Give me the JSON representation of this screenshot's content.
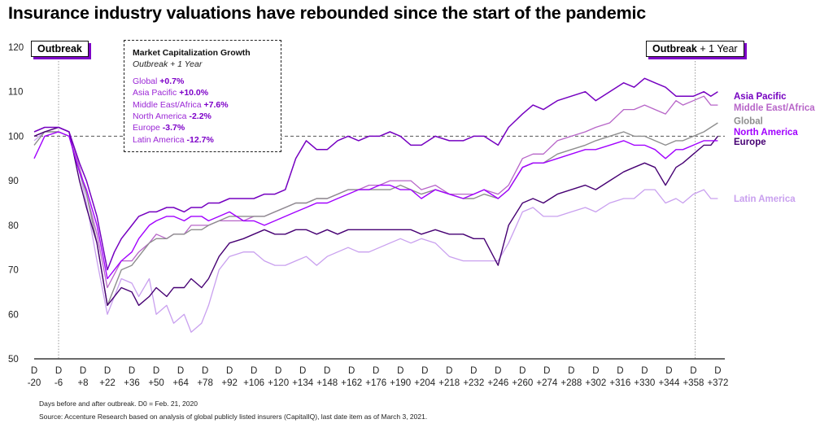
{
  "title": "Insurance industry valuations have rebounded since the start of the pandemic",
  "annotations": {
    "outbreak": "Outbreak",
    "outbreak_plus_bold": "Outbreak",
    "outbreak_plus_rest": " + 1 Year"
  },
  "legend_box": {
    "title": "Market Capitalization Growth",
    "subtitle": "Outbreak + 1 Year",
    "rows": [
      {
        "name": "Global",
        "value": "+0.7%"
      },
      {
        "name": "Asia Pacific",
        "value": "+10.0%"
      },
      {
        "name": "Middle East/Africa",
        "value": "+7.6%"
      },
      {
        "name": "North America",
        "value": "-2.2%"
      },
      {
        "name": "Europe",
        "value": "-3.7%"
      },
      {
        "name": "Latin America",
        "value": "-12.7%"
      }
    ]
  },
  "footnotes": {
    "days": "Days before and after outbreak. D0 = Feb. 21, 2020",
    "source": "Source: Accenture Research based on analysis of global publicly listed insurers (CapitalIQ), last date item as of March 3, 2021."
  },
  "chart_data": {
    "type": "line",
    "xlabel": "",
    "ylabel": "",
    "ylim": [
      50,
      120
    ],
    "xlim": [
      -20,
      376
    ],
    "grid": false,
    "reference_line": 100,
    "event_lines": [
      -6,
      359
    ],
    "y_ticks": [
      50,
      60,
      70,
      80,
      90,
      100,
      110,
      120
    ],
    "x_ticks": [
      {
        "x": -20,
        "top": "D",
        "bottom": "-20"
      },
      {
        "x": -6,
        "top": "D",
        "bottom": "-6"
      },
      {
        "x": 8,
        "top": "D",
        "bottom": "+8"
      },
      {
        "x": 22,
        "top": "D",
        "bottom": "+22"
      },
      {
        "x": 36,
        "top": "D",
        "bottom": "+36"
      },
      {
        "x": 50,
        "top": "D",
        "bottom": "+50"
      },
      {
        "x": 64,
        "top": "D",
        "bottom": "+64"
      },
      {
        "x": 78,
        "top": "D",
        "bottom": "+78"
      },
      {
        "x": 92,
        "top": "D",
        "bottom": "+92"
      },
      {
        "x": 106,
        "top": "D",
        "bottom": "+106"
      },
      {
        "x": 120,
        "top": "D",
        "bottom": "+120"
      },
      {
        "x": 134,
        "top": "D",
        "bottom": "+134"
      },
      {
        "x": 148,
        "top": "D",
        "bottom": "+148"
      },
      {
        "x": 162,
        "top": "D",
        "bottom": "+162"
      },
      {
        "x": 176,
        "top": "D",
        "bottom": "+176"
      },
      {
        "x": 190,
        "top": "D",
        "bottom": "+190"
      },
      {
        "x": 204,
        "top": "D",
        "bottom": "+204"
      },
      {
        "x": 218,
        "top": "D",
        "bottom": "+218"
      },
      {
        "x": 232,
        "top": "D",
        "bottom": "+232"
      },
      {
        "x": 246,
        "top": "D",
        "bottom": "+246"
      },
      {
        "x": 260,
        "top": "D",
        "bottom": "+260"
      },
      {
        "x": 274,
        "top": "D",
        "bottom": "+274"
      },
      {
        "x": 288,
        "top": "D",
        "bottom": "+288"
      },
      {
        "x": 302,
        "top": "D",
        "bottom": "+302"
      },
      {
        "x": 316,
        "top": "D",
        "bottom": "+316"
      },
      {
        "x": 330,
        "top": "D",
        "bottom": "+330"
      },
      {
        "x": 344,
        "top": "D",
        "bottom": "+344"
      },
      {
        "x": 358,
        "top": "D",
        "bottom": "+358"
      },
      {
        "x": 372,
        "top": "D",
        "bottom": "+372"
      }
    ],
    "series": [
      {
        "name": "Latin America",
        "color": "#c9a0ef",
        "width": 1.3,
        "x": [
          -20,
          -14,
          -6,
          0,
          6,
          10,
          16,
          22,
          26,
          30,
          36,
          40,
          46,
          50,
          56,
          60,
          66,
          70,
          76,
          80,
          86,
          92,
          100,
          106,
          112,
          118,
          124,
          130,
          136,
          142,
          148,
          154,
          160,
          166,
          172,
          178,
          184,
          190,
          196,
          202,
          210,
          218,
          226,
          232,
          238,
          246,
          252,
          260,
          266,
          272,
          280,
          288,
          296,
          302,
          310,
          318,
          324,
          330,
          336,
          342,
          348,
          352,
          358,
          364,
          368,
          372
        ],
        "values": [
          99,
          101,
          101,
          100,
          92,
          85,
          72,
          60,
          64,
          68,
          67,
          64,
          68,
          60,
          62,
          58,
          60,
          56,
          58,
          62,
          70,
          73,
          74,
          74,
          72,
          71,
          71,
          72,
          73,
          71,
          73,
          74,
          75,
          74,
          74,
          75,
          76,
          77,
          76,
          77,
          76,
          73,
          72,
          72,
          72,
          72,
          76,
          83,
          84,
          82,
          82,
          83,
          84,
          83,
          85,
          86,
          86,
          88,
          88,
          85,
          86,
          85,
          87,
          88,
          86,
          86
        ]
      },
      {
        "name": "Middle East/Africa",
        "color": "#b765c8",
        "width": 1.3,
        "x": [
          -20,
          -14,
          -6,
          0,
          6,
          10,
          16,
          22,
          26,
          30,
          36,
          40,
          46,
          50,
          56,
          60,
          66,
          70,
          76,
          80,
          86,
          92,
          100,
          106,
          112,
          118,
          124,
          130,
          136,
          142,
          148,
          154,
          160,
          166,
          172,
          178,
          184,
          190,
          196,
          202,
          210,
          218,
          226,
          232,
          238,
          246,
          252,
          260,
          266,
          272,
          280,
          288,
          296,
          302,
          310,
          318,
          324,
          330,
          336,
          342,
          348,
          352,
          358,
          364,
          368,
          372
        ],
        "values": [
          100,
          101,
          102,
          101,
          93,
          87,
          78,
          66,
          69,
          72,
          72,
          74,
          76,
          78,
          77,
          78,
          78,
          80,
          80,
          80,
          81,
          81,
          81,
          82,
          82,
          83,
          84,
          85,
          85,
          86,
          86,
          87,
          88,
          88,
          89,
          89,
          90,
          90,
          90,
          88,
          89,
          87,
          87,
          87,
          88,
          87,
          89,
          95,
          96,
          96,
          99,
          100,
          101,
          102,
          103,
          106,
          106,
          107,
          106,
          105,
          108,
          107,
          108,
          109,
          107,
          107
        ]
      },
      {
        "name": "Global",
        "color": "#8e8e8e",
        "width": 1.4,
        "x": [
          -20,
          -14,
          -6,
          0,
          6,
          10,
          16,
          22,
          26,
          30,
          36,
          40,
          46,
          50,
          56,
          60,
          66,
          70,
          76,
          80,
          86,
          92,
          100,
          106,
          112,
          118,
          124,
          130,
          136,
          142,
          148,
          154,
          160,
          166,
          172,
          178,
          184,
          190,
          196,
          202,
          210,
          218,
          226,
          232,
          238,
          246,
          252,
          260,
          266,
          272,
          280,
          288,
          296,
          302,
          310,
          318,
          324,
          330,
          336,
          342,
          348,
          352,
          358,
          364,
          368,
          372
        ],
        "values": [
          98,
          101,
          101,
          100,
          92,
          87,
          76,
          62,
          66,
          70,
          71,
          73,
          76,
          77,
          77,
          78,
          78,
          79,
          79,
          80,
          81,
          82,
          82,
          82,
          82,
          83,
          84,
          85,
          85,
          86,
          86,
          87,
          88,
          88,
          88,
          88,
          88,
          89,
          88,
          87,
          88,
          87,
          86,
          86,
          87,
          86,
          88,
          93,
          94,
          94,
          96,
          97,
          98,
          99,
          100,
          101,
          100,
          100,
          99,
          98,
          99,
          99,
          100,
          101,
          102,
          103
        ]
      },
      {
        "name": "Europe",
        "color": "#460073",
        "width": 1.4,
        "x": [
          -20,
          -14,
          -6,
          0,
          6,
          10,
          16,
          22,
          26,
          30,
          36,
          40,
          46,
          50,
          56,
          60,
          66,
          70,
          76,
          80,
          86,
          92,
          100,
          106,
          112,
          118,
          124,
          130,
          136,
          142,
          148,
          154,
          160,
          166,
          172,
          178,
          184,
          190,
          196,
          202,
          210,
          218,
          226,
          232,
          238,
          246,
          252,
          260,
          266,
          272,
          280,
          288,
          296,
          302,
          310,
          318,
          324,
          330,
          336,
          342,
          348,
          352,
          358,
          364,
          368,
          372
        ],
        "values": [
          100,
          101,
          102,
          101,
          90,
          84,
          76,
          62,
          64,
          66,
          65,
          62,
          64,
          66,
          64,
          66,
          66,
          68,
          66,
          68,
          73,
          76,
          77,
          78,
          79,
          78,
          78,
          79,
          79,
          78,
          79,
          78,
          79,
          79,
          79,
          79,
          79,
          79,
          79,
          78,
          79,
          78,
          78,
          77,
          77,
          71,
          80,
          85,
          86,
          85,
          87,
          88,
          89,
          88,
          90,
          92,
          93,
          94,
          93,
          89,
          93,
          94,
          96,
          98,
          98,
          100
        ]
      },
      {
        "name": "North America",
        "color": "#a100ff",
        "width": 1.4,
        "x": [
          -20,
          -14,
          -6,
          0,
          6,
          10,
          16,
          22,
          26,
          30,
          36,
          40,
          46,
          50,
          56,
          60,
          66,
          70,
          76,
          80,
          86,
          92,
          100,
          106,
          112,
          118,
          124,
          130,
          136,
          142,
          148,
          154,
          160,
          166,
          172,
          178,
          184,
          190,
          196,
          202,
          210,
          218,
          226,
          232,
          238,
          246,
          252,
          260,
          266,
          272,
          280,
          288,
          296,
          302,
          310,
          318,
          324,
          330,
          336,
          342,
          348,
          352,
          358,
          364,
          368,
          372
        ],
        "values": [
          95,
          100,
          101,
          100,
          92,
          88,
          80,
          68,
          70,
          72,
          74,
          77,
          80,
          81,
          82,
          82,
          81,
          82,
          82,
          81,
          82,
          83,
          81,
          81,
          80,
          81,
          82,
          83,
          84,
          85,
          85,
          86,
          87,
          88,
          88,
          89,
          89,
          88,
          88,
          86,
          88,
          87,
          86,
          87,
          88,
          86,
          88,
          93,
          94,
          94,
          95,
          96,
          97,
          97,
          98,
          99,
          98,
          98,
          97,
          95,
          97,
          97,
          98,
          99,
          99,
          99
        ]
      },
      {
        "name": "Asia Pacific",
        "color": "#7500c0",
        "width": 1.5,
        "x": [
          -20,
          -14,
          -6,
          0,
          6,
          10,
          16,
          22,
          26,
          30,
          36,
          40,
          46,
          50,
          56,
          60,
          66,
          70,
          76,
          80,
          86,
          92,
          100,
          106,
          112,
          118,
          124,
          130,
          136,
          142,
          148,
          154,
          160,
          166,
          172,
          178,
          184,
          190,
          196,
          202,
          210,
          218,
          226,
          232,
          238,
          246,
          252,
          260,
          266,
          272,
          280,
          288,
          296,
          302,
          310,
          318,
          324,
          330,
          336,
          342,
          348,
          352,
          358,
          364,
          368,
          372
        ],
        "values": [
          101,
          102,
          102,
          101,
          94,
          90,
          82,
          70,
          74,
          77,
          80,
          82,
          83,
          83,
          84,
          84,
          83,
          84,
          84,
          85,
          85,
          86,
          86,
          86,
          87,
          87,
          88,
          95,
          99,
          97,
          97,
          99,
          100,
          99,
          100,
          100,
          101,
          100,
          98,
          98,
          100,
          99,
          99,
          100,
          100,
          98,
          102,
          105,
          107,
          106,
          108,
          109,
          110,
          108,
          110,
          112,
          111,
          113,
          112,
          111,
          109,
          109,
          109,
          110,
          109,
          110
        ]
      }
    ]
  }
}
